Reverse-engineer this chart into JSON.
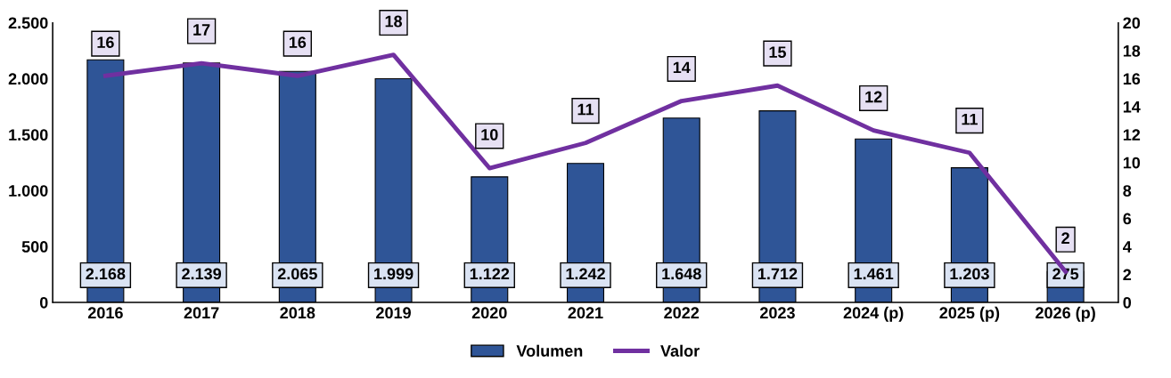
{
  "chart_data": {
    "type": "bar",
    "categories": [
      "2016",
      "2017",
      "2018",
      "2019",
      "2020",
      "2021",
      "2022",
      "2023",
      "2024 (p)",
      "2025 (p)",
      "2026 (p)"
    ],
    "series": [
      {
        "name": "Volumen",
        "color": "#2f5597",
        "values": [
          2168,
          2139,
          2065,
          1999,
          1122,
          1242,
          1648,
          1712,
          1461,
          1203,
          275
        ],
        "value_labels": [
          "2.168",
          "2.139",
          "2.065",
          "1.999",
          "1.122",
          "1.242",
          "1.648",
          "1.712",
          "1.461",
          "1.203",
          "275"
        ]
      },
      {
        "name": "Valor",
        "type": "line",
        "axis": "y2",
        "color": "#7030a0",
        "values": [
          16.2,
          17.1,
          16.2,
          17.7,
          9.6,
          11.4,
          14.4,
          15.5,
          12.3,
          10.7,
          2.2
        ],
        "value_labels": [
          "16",
          "17",
          "16",
          "18",
          "10",
          "11",
          "14",
          "15",
          "12",
          "11",
          "2"
        ]
      }
    ],
    "ylim": [
      0,
      2500
    ],
    "yticks": [
      {
        "value": 0,
        "label": "0"
      },
      {
        "value": 500,
        "label": "500"
      },
      {
        "value": 1000,
        "label": "1.000"
      },
      {
        "value": 1500,
        "label": "1.500"
      },
      {
        "value": 2000,
        "label": "2.000"
      },
      {
        "value": 2500,
        "label": "2.500"
      }
    ],
    "y2lim": [
      0,
      20
    ],
    "y2ticks": [
      0,
      2,
      4,
      6,
      8,
      10,
      12,
      14,
      16,
      18,
      20
    ],
    "grid": false,
    "legend": "bottom",
    "marker": "none",
    "line_style": "solid"
  }
}
